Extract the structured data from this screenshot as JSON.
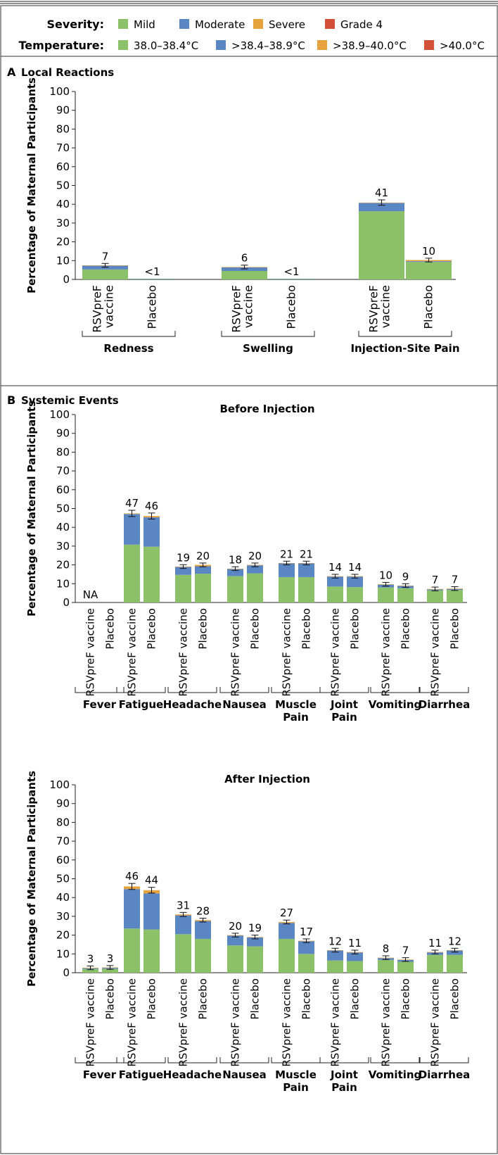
{
  "legend": {
    "severity": {
      "label": "Severity:",
      "items": [
        {
          "name": "Mild",
          "color": "#8cc16a"
        },
        {
          "name": "Moderate",
          "color": "#5a86c4"
        },
        {
          "name": "Severe",
          "color": "#e6a23c"
        },
        {
          "name": "Grade 4",
          "color": "#d2503a"
        }
      ]
    },
    "temperature": {
      "label": "Temperature:",
      "items": [
        {
          "name": "38.0–38.4°C",
          "color": "#8cc16a"
        },
        {
          "name": ">38.4–38.9°C",
          "color": "#5a86c4"
        },
        {
          "name": ">38.9–40.0°C",
          "color": "#e6a23c"
        },
        {
          "name": ">40.0°C",
          "color": "#d2503a"
        }
      ]
    }
  },
  "panels": {
    "a": {
      "letter": "A",
      "title": "Local Reactions"
    },
    "b": {
      "letter": "B",
      "title": "Systemic Events"
    }
  },
  "chart_data": [
    {
      "type": "bar",
      "stacked": true,
      "panel": "A",
      "title": "",
      "ylabel": "Percentage of Maternal Participants",
      "ylim": [
        0,
        100
      ],
      "yticks": [
        0,
        10,
        20,
        30,
        40,
        50,
        60,
        70,
        80,
        90,
        100
      ],
      "grid": false,
      "groups": [
        {
          "label": "Redness",
          "bars": [
            {
              "label": "RSVpreF vaccine",
              "total_label": "7",
              "segments": [
                5.3,
                2.0,
                0.2,
                0
              ]
            },
            {
              "label": "Placebo",
              "total_label": "<1",
              "segments": [
                0.3,
                0.1,
                0,
                0
              ]
            }
          ]
        },
        {
          "label": "Swelling",
          "bars": [
            {
              "label": "RSVpreF vaccine",
              "total_label": "6",
              "segments": [
                4.5,
                2.0,
                0.1,
                0
              ]
            },
            {
              "label": "Placebo",
              "total_label": "<1",
              "segments": [
                0.3,
                0.1,
                0,
                0
              ]
            }
          ]
        },
        {
          "label": "Injection-Site Pain",
          "bars": [
            {
              "label": "RSVpreF vaccine",
              "total_label": "41",
              "segments": [
                36.3,
                4.4,
                0.2,
                0
              ]
            },
            {
              "label": "Placebo",
              "total_label": "10",
              "segments": [
                9.3,
                0.4,
                0.6,
                0
              ]
            }
          ]
        }
      ]
    },
    {
      "type": "bar",
      "stacked": true,
      "panel": "B",
      "title": "Before Injection",
      "ylabel": "Percentage of Maternal Participants",
      "ylim": [
        0,
        100
      ],
      "yticks": [
        0,
        10,
        20,
        30,
        40,
        50,
        60,
        70,
        80,
        90,
        100
      ],
      "grid": false,
      "groups": [
        {
          "label": "Fever",
          "bars": [
            {
              "label": "RSVpreF vaccine",
              "total_label": "NA",
              "segments": [
                0,
                0,
                0,
                0
              ]
            },
            {
              "label": "Placebo",
              "total_label": "",
              "segments": [
                0,
                0,
                0,
                0
              ]
            }
          ]
        },
        {
          "label": "Fatigue",
          "bars": [
            {
              "label": "RSVpreF vaccine",
              "total_label": "47",
              "segments": [
                30.8,
                16.3,
                0.3,
                0
              ]
            },
            {
              "label": "Placebo",
              "total_label": "46",
              "segments": [
                29.7,
                15.6,
                0.7,
                0
              ]
            }
          ]
        },
        {
          "label": "Headache",
          "bars": [
            {
              "label": "RSVpreF vaccine",
              "total_label": "19",
              "segments": [
                14.7,
                4.2,
                0.2,
                0
              ]
            },
            {
              "label": "Placebo",
              "total_label": "20",
              "segments": [
                15.3,
                4.0,
                0.7,
                0
              ]
            }
          ]
        },
        {
          "label": "Nausea",
          "bars": [
            {
              "label": "RSVpreF vaccine",
              "total_label": "18",
              "segments": [
                14.0,
                3.8,
                0.2,
                0
              ]
            },
            {
              "label": "Placebo",
              "total_label": "20",
              "segments": [
                15.5,
                4.3,
                0.2,
                0
              ]
            }
          ]
        },
        {
          "label": "Muscle\nPain",
          "bars": [
            {
              "label": "RSVpreF vaccine",
              "total_label": "21",
              "segments": [
                13.5,
                7.3,
                0.2,
                0
              ]
            },
            {
              "label": "Placebo",
              "total_label": "21",
              "segments": [
                13.5,
                7.3,
                0.2,
                0
              ]
            }
          ]
        },
        {
          "label": "Joint\nPain",
          "bars": [
            {
              "label": "RSVpreF vaccine",
              "total_label": "14",
              "segments": [
                8.5,
                5.3,
                0.2,
                0
              ]
            },
            {
              "label": "Placebo",
              "total_label": "14",
              "segments": [
                8.2,
                5.6,
                0.2,
                0
              ]
            }
          ]
        },
        {
          "label": "Vomiting",
          "bars": [
            {
              "label": "RSVpreF vaccine",
              "total_label": "10",
              "segments": [
                8.0,
                1.5,
                0.2,
                0
              ]
            },
            {
              "label": "Placebo",
              "total_label": "9",
              "segments": [
                7.6,
                1.2,
                0.2,
                0
              ]
            }
          ]
        },
        {
          "label": "Diarrhea",
          "bars": [
            {
              "label": "RSVpreF vaccine",
              "total_label": "7",
              "segments": [
                6.5,
                0.5,
                0.2,
                0
              ]
            },
            {
              "label": "Placebo",
              "total_label": "7",
              "segments": [
                6.7,
                0.5,
                0.2,
                0
              ]
            }
          ]
        }
      ]
    },
    {
      "type": "bar",
      "stacked": true,
      "panel": "B",
      "title": "After Injection",
      "ylabel": "Percentage of Maternal Participants",
      "ylim": [
        0,
        100
      ],
      "yticks": [
        0,
        10,
        20,
        30,
        40,
        50,
        60,
        70,
        80,
        90,
        100
      ],
      "grid": false,
      "groups": [
        {
          "label": "Fever",
          "bars": [
            {
              "label": "RSVpreF vaccine",
              "total_label": "3",
              "segments": [
                2.0,
                0.5,
                0.1,
                0
              ]
            },
            {
              "label": "Placebo",
              "total_label": "3",
              "segments": [
                2.1,
                0.6,
                0.1,
                0
              ]
            }
          ]
        },
        {
          "label": "Fatigue",
          "bars": [
            {
              "label": "RSVpreF vaccine",
              "total_label": "46",
              "segments": [
                23.5,
                21.0,
                1.4,
                0
              ]
            },
            {
              "label": "Placebo",
              "total_label": "44",
              "segments": [
                23.0,
                19.2,
                1.7,
                0
              ]
            }
          ]
        },
        {
          "label": "Headache",
          "bars": [
            {
              "label": "RSVpreF vaccine",
              "total_label": "31",
              "segments": [
                20.5,
                10.0,
                0.5,
                0
              ]
            },
            {
              "label": "Placebo",
              "total_label": "28",
              "segments": [
                18.0,
                9.5,
                0.5,
                0
              ]
            }
          ]
        },
        {
          "label": "Nausea",
          "bars": [
            {
              "label": "RSVpreF vaccine",
              "total_label": "20",
              "segments": [
                14.5,
                5.3,
                0.2,
                0
              ]
            },
            {
              "label": "Placebo",
              "total_label": "19",
              "segments": [
                14.0,
                4.8,
                0.2,
                0
              ]
            }
          ]
        },
        {
          "label": "Muscle\nPain",
          "bars": [
            {
              "label": "RSVpreF vaccine",
              "total_label": "27",
              "segments": [
                18.0,
                8.5,
                0.5,
                0
              ]
            },
            {
              "label": "Placebo",
              "total_label": "17",
              "segments": [
                10.0,
                6.8,
                0.2,
                0
              ]
            }
          ]
        },
        {
          "label": "Joint\nPain",
          "bars": [
            {
              "label": "RSVpreF vaccine",
              "total_label": "12",
              "segments": [
                6.5,
                5.3,
                0.2,
                0
              ]
            },
            {
              "label": "Placebo",
              "total_label": "11",
              "segments": [
                6.2,
                4.6,
                0.2,
                0
              ]
            }
          ]
        },
        {
          "label": "Vomiting",
          "bars": [
            {
              "label": "RSVpreF vaccine",
              "total_label": "8",
              "segments": [
                6.8,
                1.0,
                0.2,
                0
              ]
            },
            {
              "label": "Placebo",
              "total_label": "7",
              "segments": [
                5.8,
                1.0,
                0.2,
                0
              ]
            }
          ]
        },
        {
          "label": "Diarrhea",
          "bars": [
            {
              "label": "RSVpreF vaccine",
              "total_label": "11",
              "segments": [
                9.5,
                1.3,
                0.2,
                0
              ]
            },
            {
              "label": "Placebo",
              "total_label": "12",
              "segments": [
                9.5,
                2.3,
                0.2,
                0
              ]
            }
          ]
        }
      ]
    }
  ]
}
